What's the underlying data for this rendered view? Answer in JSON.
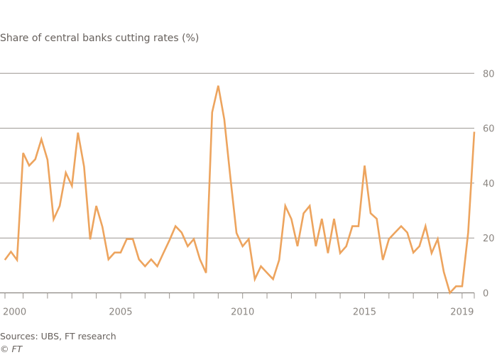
{
  "chart_data": {
    "type": "line",
    "title": "Share of central banks cutting rates (%)",
    "xlabel": "",
    "ylabel": "",
    "ylim": [
      0,
      80
    ],
    "xlim": [
      2000,
      2019.5
    ],
    "grid": true,
    "y_ticks": [
      0,
      20,
      40,
      60,
      80
    ],
    "x_ticks": [
      {
        "value": 2000,
        "label": "2000"
      },
      {
        "value": 2005,
        "label": "2005"
      },
      {
        "value": 2010,
        "label": "2010"
      },
      {
        "value": 2015,
        "label": "2015"
      },
      {
        "value": 2019,
        "label": "2019"
      }
    ],
    "x_start": 2000.25,
    "x_step": 0.25,
    "series": [
      {
        "name": "Share of central banks cutting rates",
        "color": "#eda45e",
        "values": [
          12,
          15,
          12,
          51,
          46.4,
          48.7,
          56,
          48.5,
          26.8,
          31.7,
          43.8,
          39,
          58.4,
          46,
          19.5,
          31.7,
          24.1,
          12.2,
          14.7,
          14.7,
          19.6,
          19.6,
          12.2,
          9.7,
          12.2,
          9.7,
          14.5,
          19.2,
          24.3,
          22,
          17,
          19.6,
          12.2,
          7.3,
          65.8,
          75.5,
          63.2,
          42,
          21.8,
          17,
          19.6,
          5,
          9.7,
          7.3,
          5,
          12,
          31.7,
          26.9,
          17,
          29,
          31.7,
          17,
          27,
          14.5,
          27,
          14.5,
          17,
          24.3,
          24.3,
          46.4,
          29,
          27,
          12,
          19.6,
          22,
          24.3,
          22,
          14.7,
          17,
          24.3,
          14.5,
          19.6,
          7.6,
          0,
          2.4,
          2.4,
          22,
          58.7
        ]
      }
    ]
  },
  "footer": {
    "source": "Sources: UBS, FT research",
    "copyright": "© FT"
  }
}
